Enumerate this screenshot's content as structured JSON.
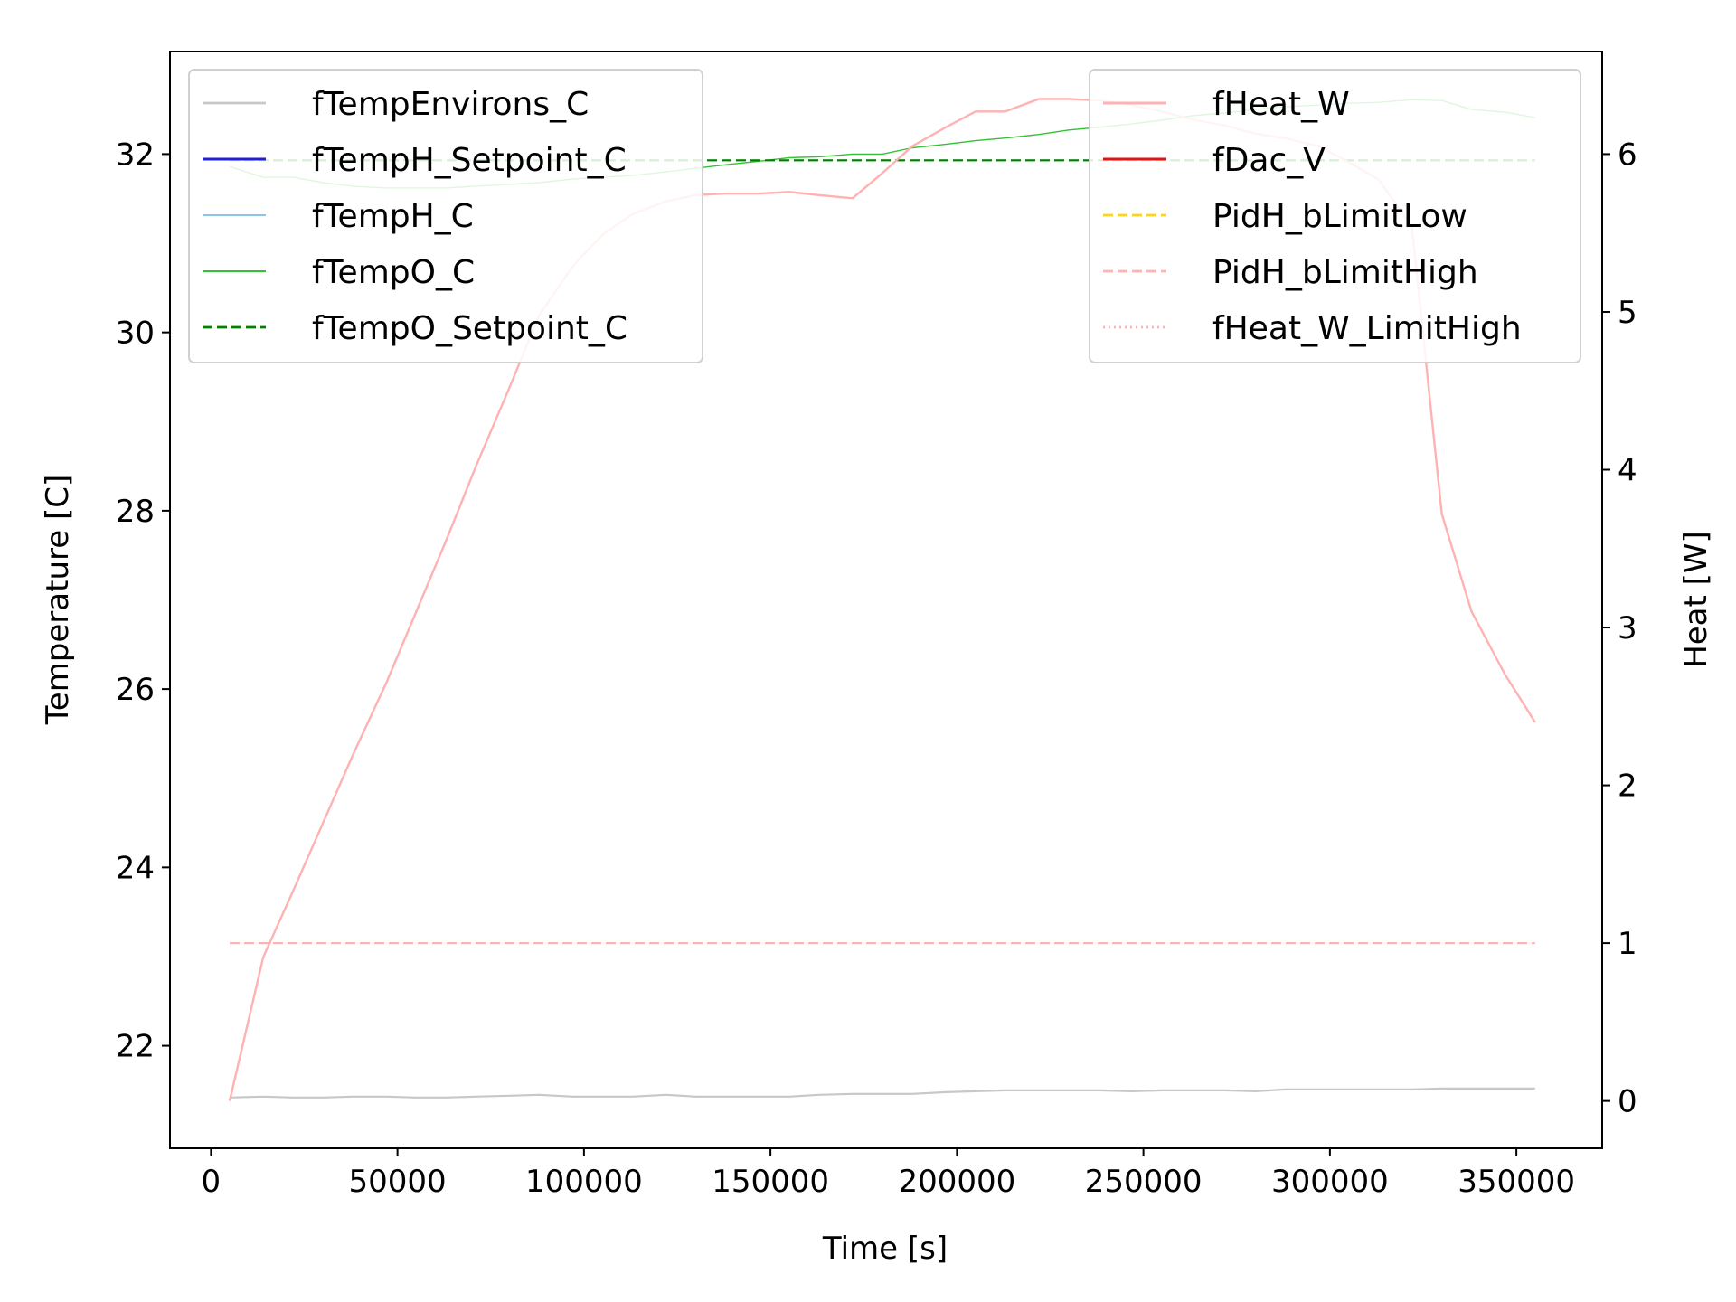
{
  "chart_data": {
    "type": "line",
    "xlabel": "Time [s]",
    "ylabel_left": "Temperature [C]",
    "ylabel_right": "Heat [W]",
    "xlim": [
      -11000,
      373000
    ],
    "ylim_left": [
      20.85,
      33.15
    ],
    "ylim_right": [
      -0.3,
      6.65
    ],
    "x_ticks": [
      0,
      50000,
      100000,
      150000,
      200000,
      250000,
      300000,
      350000
    ],
    "y_ticks_left": [
      22,
      24,
      26,
      28,
      30,
      32
    ],
    "y_ticks_right": [
      0,
      1,
      2,
      3,
      4,
      5,
      6
    ],
    "grid": false,
    "legend_left_placement": "top-left",
    "legend_right_placement": "top-right",
    "series_left": [
      {
        "name": "fTempEnvirons_C",
        "color": "#c8c8c8",
        "width": 2.2,
        "dash": "solid",
        "opacity": 1,
        "x": [
          5000,
          14000,
          22000,
          30000,
          38000,
          47000,
          55000,
          63000,
          71000,
          80000,
          88000,
          97000,
          105000,
          113000,
          122000,
          130000,
          138000,
          147000,
          155000,
          163000,
          172000,
          180000,
          188000,
          197000,
          205000,
          213000,
          222000,
          230000,
          238000,
          247000,
          255000,
          263000,
          272000,
          280000,
          288000,
          297000,
          305000,
          313000,
          322000,
          330000,
          338000,
          347000,
          355000
        ],
        "y": [
          21.42,
          21.43,
          21.42,
          21.42,
          21.43,
          21.43,
          21.42,
          21.42,
          21.43,
          21.44,
          21.45,
          21.43,
          21.43,
          21.43,
          21.45,
          21.43,
          21.43,
          21.43,
          21.43,
          21.45,
          21.46,
          21.46,
          21.46,
          21.48,
          21.49,
          21.5,
          21.5,
          21.5,
          21.5,
          21.49,
          21.5,
          21.5,
          21.5,
          21.49,
          21.51,
          21.51,
          21.51,
          21.51,
          21.51,
          21.52,
          21.52,
          21.52,
          21.52
        ]
      },
      {
        "name": "fTempH_Setpoint_C",
        "color": "#1f1fd6",
        "width": 2.4,
        "dash": "solid",
        "opacity": 1,
        "x": [],
        "y": []
      },
      {
        "name": "fTempH_C",
        "color": "#8ec5e6",
        "width": 1.4,
        "dash": "solid",
        "opacity": 1,
        "x": [],
        "y": []
      },
      {
        "name": "fTempO_C",
        "color": "#33c233",
        "width": 1.4,
        "dash": "solid",
        "opacity": 1,
        "x": [
          5000,
          14000,
          22000,
          30000,
          38000,
          47000,
          55000,
          63000,
          71000,
          80000,
          88000,
          97000,
          105000,
          113000,
          122000,
          130000,
          138000,
          147000,
          155000,
          163000,
          172000,
          180000,
          188000,
          197000,
          205000,
          213000,
          222000,
          230000,
          238000,
          247000,
          255000,
          263000,
          272000,
          280000,
          288000,
          297000,
          305000,
          313000,
          322000,
          330000,
          338000,
          347000,
          355000
        ],
        "y": [
          31.86,
          31.74,
          31.74,
          31.68,
          31.64,
          31.62,
          31.62,
          31.62,
          31.64,
          31.66,
          31.68,
          31.72,
          31.74,
          31.76,
          31.8,
          31.84,
          31.88,
          31.92,
          31.96,
          31.97,
          32.0,
          32.0,
          32.07,
          32.11,
          32.15,
          32.18,
          32.22,
          32.27,
          32.3,
          32.34,
          32.38,
          32.43,
          32.46,
          32.5,
          32.53,
          32.55,
          32.57,
          32.58,
          32.61,
          32.6,
          32.5,
          32.47,
          32.41
        ]
      },
      {
        "name": "fTempO_Setpoint_C",
        "color": "#007f00",
        "width": 2.2,
        "dash": "dashed",
        "opacity": 1,
        "x": [
          5000,
          355000
        ],
        "y": [
          31.93,
          31.93
        ]
      }
    ],
    "series_right": [
      {
        "name": "fHeat_W",
        "color": "#ffb2b2",
        "width": 2.4,
        "dash": "solid",
        "opacity": 1,
        "x": [
          5000,
          14000,
          22000,
          30000,
          38000,
          47000,
          55000,
          63000,
          71000,
          80000,
          88000,
          97000,
          105000,
          113000,
          122000,
          130000,
          138000,
          147000,
          155000,
          163000,
          172000,
          180000,
          188000,
          197000,
          205000,
          213000,
          222000,
          230000,
          238000,
          247000,
          255000,
          263000,
          272000,
          280000,
          288000,
          297000,
          305000,
          313000,
          322000,
          330000,
          338000,
          347000,
          355000
        ],
        "y": [
          0.0,
          0.91,
          1.33,
          1.76,
          2.19,
          2.65,
          3.1,
          3.55,
          4.02,
          4.52,
          4.98,
          5.29,
          5.49,
          5.62,
          5.7,
          5.74,
          5.75,
          5.75,
          5.76,
          5.74,
          5.72,
          5.88,
          6.05,
          6.17,
          6.27,
          6.27,
          6.35,
          6.35,
          6.34,
          6.31,
          6.27,
          6.22,
          6.18,
          6.13,
          6.1,
          6.05,
          5.95,
          5.84,
          5.54,
          3.72,
          3.1,
          2.7,
          2.4
        ]
      },
      {
        "name": "fDac_V",
        "color": "#e01212",
        "width": 2.4,
        "dash": "solid",
        "opacity": 1,
        "x": [],
        "y": []
      },
      {
        "name": "PidH_bLimitLow",
        "color": "#ffd319",
        "width": 2.2,
        "dash": "dashed",
        "opacity": 1,
        "x": [],
        "y": []
      },
      {
        "name": "PidH_bLimitHigh",
        "color": "#ffb2b2",
        "width": 2.2,
        "dash": "dashed",
        "opacity": 1,
        "x": [
          5000,
          355000
        ],
        "y": [
          1.0,
          1.0
        ]
      },
      {
        "name": "fHeat_W_LimitHigh",
        "color": "#ffb2b2",
        "width": 2.2,
        "dash": "dotted",
        "opacity": 1,
        "x": [],
        "y": []
      }
    ],
    "faint_overlays": [
      {
        "color": "#c9e6c9",
        "width": 2.2,
        "dash": "dashed",
        "axis": "left",
        "x": [
          5000,
          355000
        ],
        "y": [
          31.93,
          31.93
        ]
      }
    ]
  }
}
